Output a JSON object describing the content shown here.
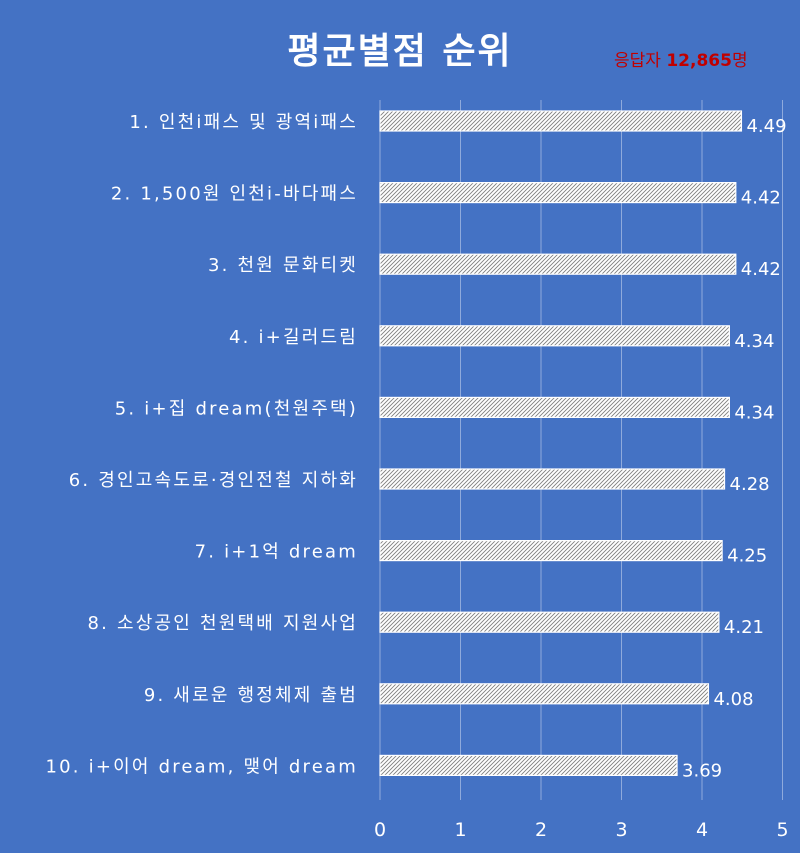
{
  "chart_data": {
    "type": "bar",
    "orientation": "horizontal",
    "title": "평균별점 순위",
    "categories": [
      "1. 인천i패스 및 광역i패스",
      "2. 1,500원 인천i-바다패스",
      "3. 천원 문화티켓",
      "4. i+길러드림",
      "5. i+집 dream(천원주택)",
      "6. 경인고속도로·경인전철 지하화",
      "7. i+1억 dream",
      "8. 소상공인 천원택배 지원사업",
      "9. 새로운 행정체제 출범",
      "10. i+이어 dream, 맺어 dream"
    ],
    "values": [
      4.49,
      4.42,
      4.42,
      4.34,
      4.34,
      4.28,
      4.25,
      4.21,
      4.08,
      3.69
    ],
    "data_labels": [
      "4.49",
      "4.42",
      "4.42",
      "4.34",
      "4.34",
      "4.28",
      "4.25",
      "4.21",
      "4.08",
      "3.69"
    ],
    "xlim": [
      0,
      5
    ],
    "xticks": [
      "0",
      "1",
      "2",
      "3",
      "4",
      "5"
    ],
    "xlabel": "",
    "ylabel": "",
    "grid": true,
    "bar_pattern": "diagonal-hatch",
    "colors": {
      "background": "#4472c4",
      "bar_fill": "#ffffff",
      "bar_hatch": "#7f7f7f",
      "text": "#ffffff",
      "grid": "#8faadc",
      "accent": "#c00000"
    }
  },
  "respondents": {
    "label": "응답자 ",
    "count": "12,865",
    "unit": "명"
  }
}
